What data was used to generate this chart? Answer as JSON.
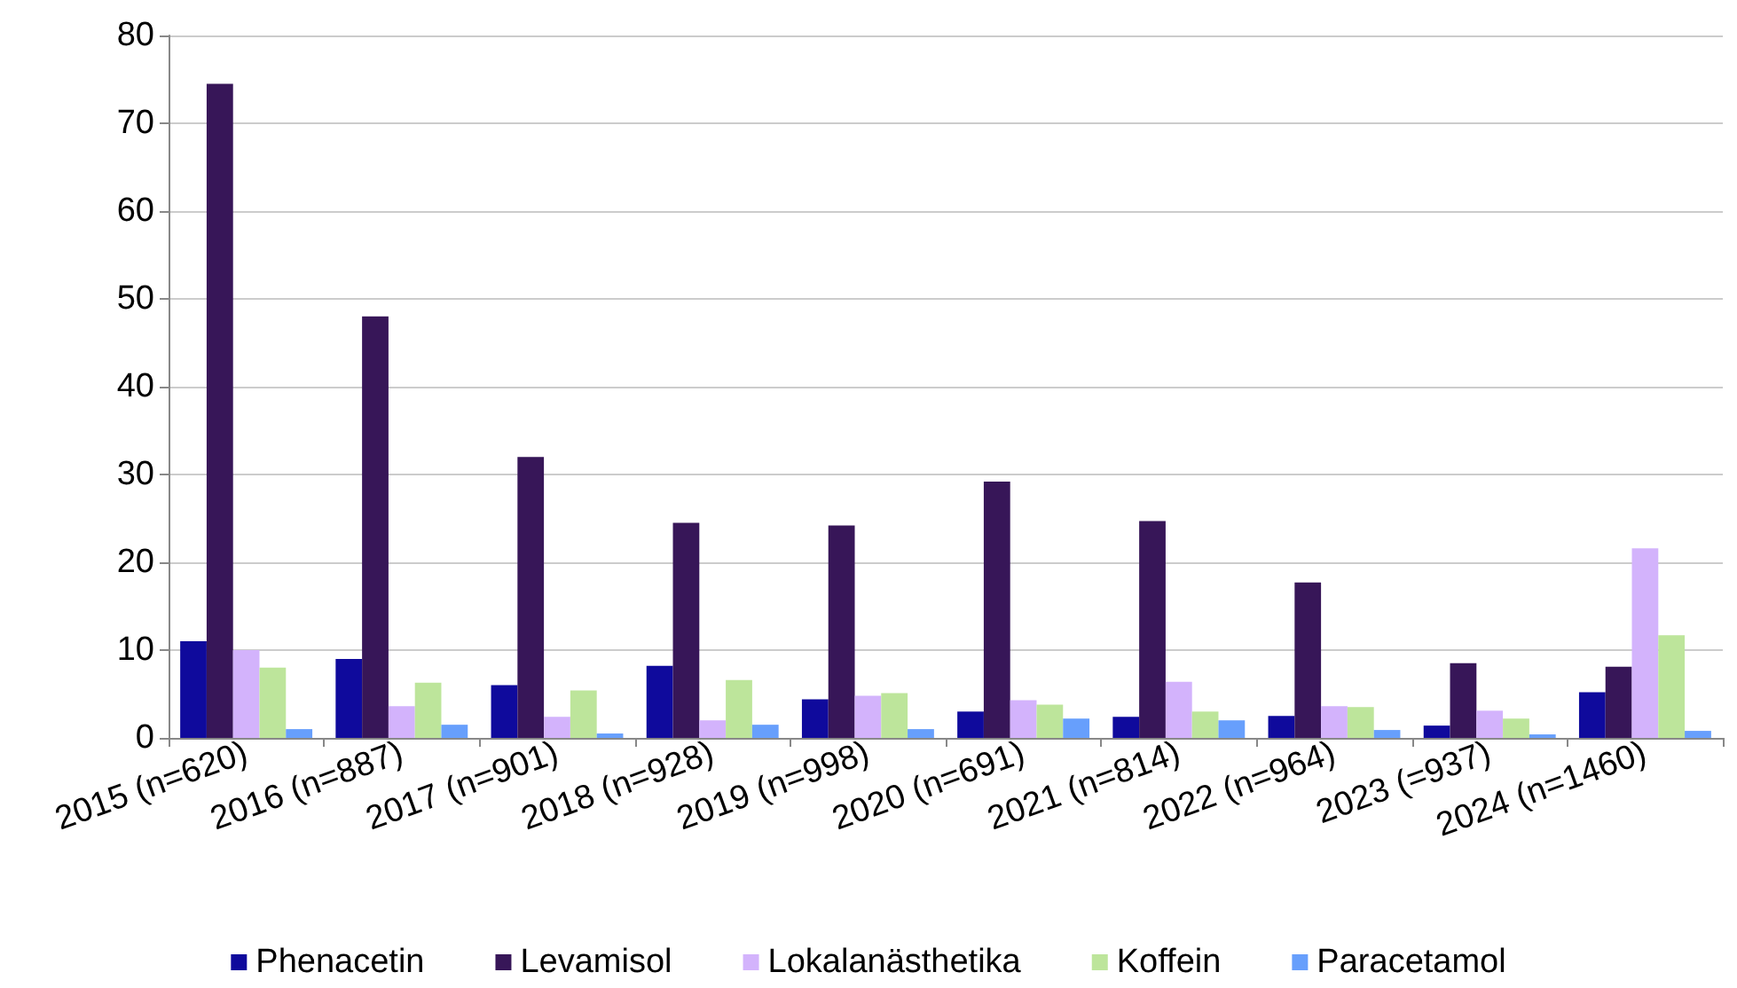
{
  "chart_data": {
    "type": "bar",
    "categories": [
      "2015 (n=620)",
      "2016 (n=887)",
      "2017 (n=901)",
      "2018 (n=928)",
      "2019 (n=998)",
      "2020 (n=691)",
      "2021 (n=814)",
      "2022 (n=964)",
      "2023 (=937)",
      "2024 (n=1460)"
    ],
    "series": [
      {
        "name": "Phenacetin",
        "color": "#0f0a9c",
        "values": [
          11,
          9,
          6,
          8.2,
          4.4,
          3,
          2.4,
          2.5,
          1.4,
          5.2
        ]
      },
      {
        "name": "Levamisol",
        "color": "#371658",
        "values": [
          74.5,
          48,
          32,
          24.5,
          24.2,
          29.2,
          24.7,
          17.7,
          8.5,
          8.1
        ]
      },
      {
        "name": "Lokalanästhetika",
        "color": "#d3b3fc",
        "values": [
          10,
          3.6,
          2.4,
          2,
          4.8,
          4.3,
          6.4,
          3.6,
          3.1,
          21.6
        ]
      },
      {
        "name": "Koffein",
        "color": "#bde59b",
        "values": [
          8,
          6.3,
          5.4,
          6.6,
          5.1,
          3.8,
          3,
          3.5,
          2.2,
          11.7
        ]
      },
      {
        "name": "Paracetamol",
        "color": "#679ffc",
        "values": [
          1,
          1.5,
          0.5,
          1.5,
          1,
          2.2,
          2,
          0.9,
          0.4,
          0.8
        ]
      }
    ],
    "ylim": [
      0,
      80
    ],
    "yticks": [
      0,
      10,
      20,
      30,
      40,
      50,
      60,
      70,
      80
    ],
    "grid": "y",
    "legend": "bottom"
  }
}
